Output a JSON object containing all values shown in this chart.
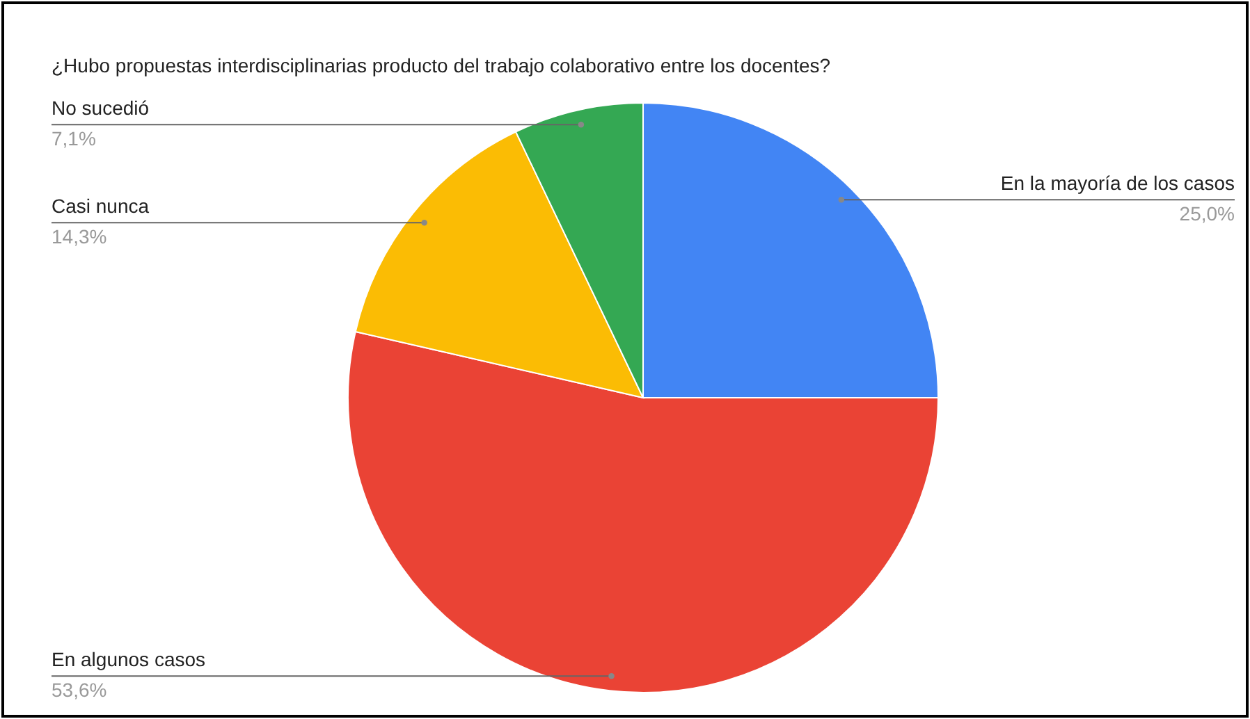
{
  "chart_data": {
    "type": "pie",
    "title": "¿Hubo propuestas interdisciplinarias producto del trabajo colaborativo entre los docentes?",
    "categories": [
      "En la mayoría de los casos",
      "En algunos casos",
      "Casi nunca",
      "No sucedió"
    ],
    "values": [
      25.0,
      53.6,
      14.3,
      7.1
    ],
    "value_labels": [
      "25,0%",
      "53,6%",
      "14,3%",
      "7,1%"
    ],
    "colors": [
      "#4285f4",
      "#ea4335",
      "#fbbc04",
      "#34a853"
    ]
  }
}
